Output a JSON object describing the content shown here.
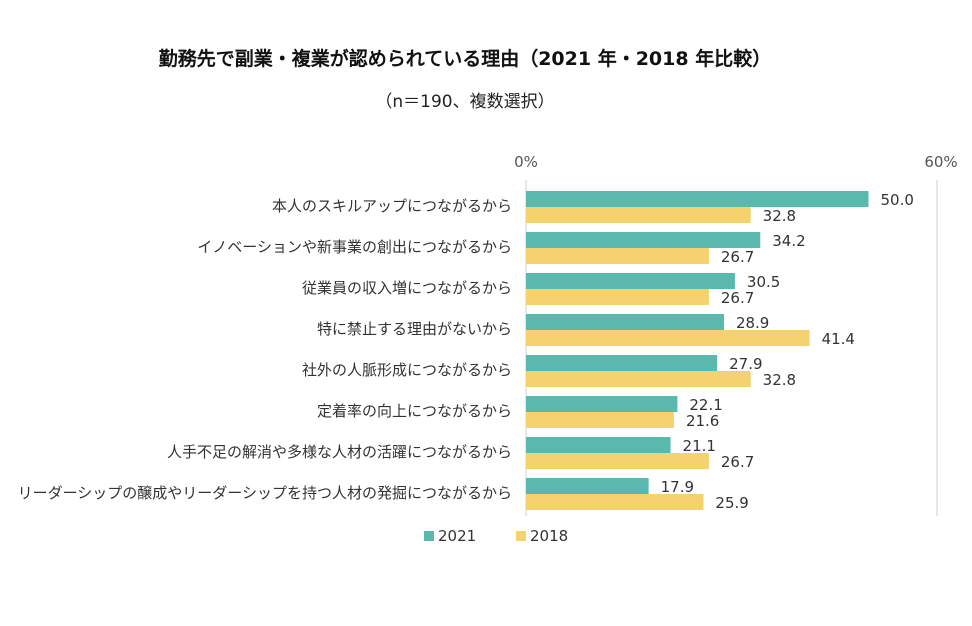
{
  "chart_data": {
    "type": "bar",
    "orientation": "horizontal",
    "title": "勤務先で副業・複業が認められている理由（2021 年・2018 年比較）",
    "subtitle": "（n＝190、複数選択）",
    "categories": [
      "本人のスキルアップにつながるから",
      "イノベーションや新事業の創出につながるから",
      "従業員の収入増につながるから",
      "特に禁止する理由がないから",
      "社外の人脈形成につながるから",
      "定着率の向上につながるから",
      "人手不足の解消や多様な人材の活躍につながるから",
      "リーダーシップの醸成やリーダーシップを持つ人材の発掘につながるから"
    ],
    "series": [
      {
        "name": "2021",
        "color": "#5ab8ad",
        "values": [
          50.0,
          34.2,
          30.5,
          28.9,
          27.9,
          22.1,
          21.1,
          17.9
        ]
      },
      {
        "name": "2018",
        "color": "#f4d36e",
        "values": [
          32.8,
          26.7,
          26.7,
          41.4,
          32.8,
          21.6,
          26.7,
          25.9
        ]
      }
    ],
    "xlim": [
      0,
      60
    ],
    "x_tick_labels": [
      "0%",
      "60%"
    ],
    "grid": false,
    "legend_position": "bottom"
  }
}
